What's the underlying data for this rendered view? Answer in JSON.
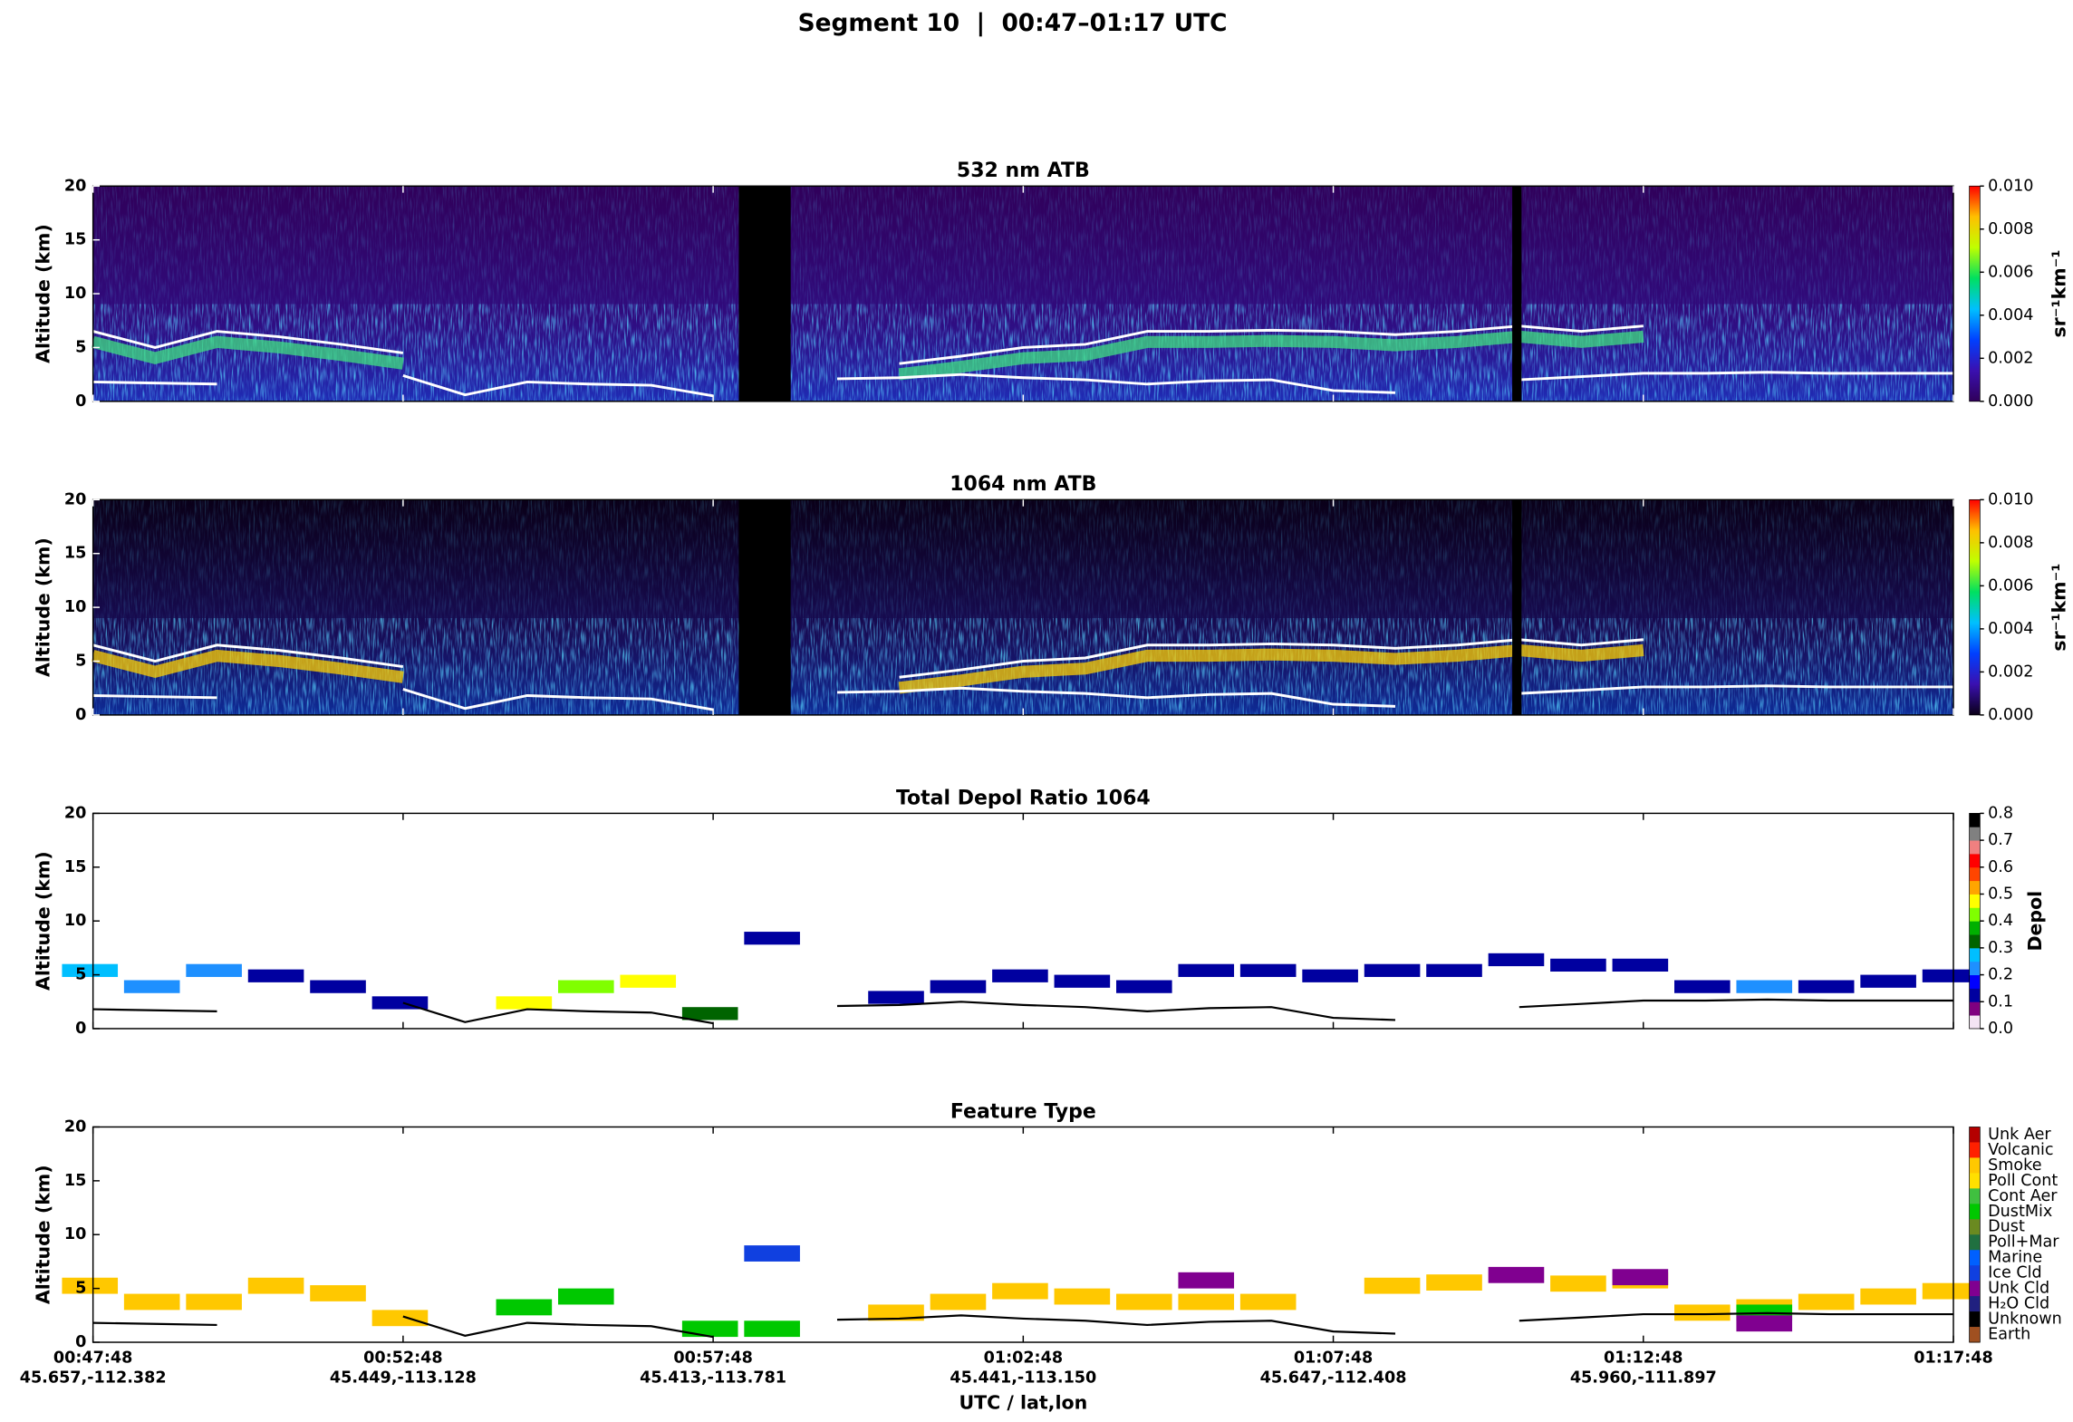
{
  "title": "Segment 10  |  00:47–01:17 UTC",
  "chart_data": [
    {
      "type": "heatmap",
      "title": "532 nm ATB",
      "y_label": "Altitude (km)",
      "ylim": [
        0,
        20
      ],
      "yticks": [
        0,
        5,
        10,
        15,
        20
      ],
      "xlim": [
        "00:47:48",
        "01:17:48"
      ],
      "x": [
        "00:47:48",
        "00:48:48",
        "00:49:48",
        "00:50:48",
        "00:51:48",
        "00:52:48",
        "00:53:48",
        "00:54:48",
        "00:55:48",
        "00:56:48",
        "00:57:48",
        "00:58:48",
        "00:59:48",
        "01:00:48",
        "01:01:48",
        "01:02:48",
        "01:03:48",
        "01:04:48",
        "01:05:48",
        "01:06:48",
        "01:07:48",
        "01:08:48",
        "01:09:48",
        "01:10:48",
        "01:11:48",
        "01:12:48",
        "01:13:48",
        "01:14:48",
        "01:15:48",
        "01:16:48",
        "01:17:48"
      ],
      "surface": [
        1.8,
        1.7,
        1.6,
        null,
        null,
        2.4,
        0.6,
        1.8,
        1.6,
        1.5,
        0.5,
        null,
        2.1,
        2.2,
        2.5,
        2.2,
        2.0,
        1.6,
        1.9,
        2.0,
        1.0,
        0.8,
        null,
        2.0,
        2.3,
        2.6,
        2.6,
        2.7,
        2.6,
        2.6,
        2.6
      ],
      "layer_top": [
        6.5,
        5.0,
        6.5,
        6.0,
        5.3,
        4.5,
        null,
        null,
        null,
        null,
        null,
        null,
        null,
        3.5,
        4.2,
        5.0,
        5.3,
        6.5,
        6.5,
        6.6,
        6.5,
        6.2,
        6.5,
        7.0,
        6.5,
        7.0,
        null,
        null,
        null,
        null,
        null
      ],
      "layer_color": "#40e080",
      "line_color": "#ffffff",
      "colorbar_label": "sr⁻¹km⁻¹",
      "colorbar_lim": [
        0,
        0.01
      ],
      "colorbar_ticks": [
        {
          "value": 0,
          "label": "0.000"
        },
        {
          "value": 0.002,
          "label": "0.002"
        },
        {
          "value": 0.004,
          "label": "0.004"
        },
        {
          "value": 0.006,
          "label": "0.006"
        },
        {
          "value": 0.008,
          "label": "0.008"
        },
        {
          "value": 0.01,
          "label": "0.010"
        }
      ],
      "colormap": [
        "#30005a",
        "#3a10b0",
        "#0040ff",
        "#00c0ff",
        "#00e060",
        "#c0ff00",
        "#ffc000",
        "#ff0000"
      ]
    },
    {
      "type": "heatmap",
      "title": "1064 nm ATB",
      "y_label": "Altitude (km)",
      "ylim": [
        0,
        20
      ],
      "yticks": [
        0,
        5,
        10,
        15,
        20
      ],
      "xlim": [
        "00:47:48",
        "01:17:48"
      ],
      "x": [
        "00:47:48",
        "00:48:48",
        "00:49:48",
        "00:50:48",
        "00:51:48",
        "00:52:48",
        "00:53:48",
        "00:54:48",
        "00:55:48",
        "00:56:48",
        "00:57:48",
        "00:58:48",
        "00:59:48",
        "01:00:48",
        "01:01:48",
        "01:02:48",
        "01:03:48",
        "01:04:48",
        "01:05:48",
        "01:06:48",
        "01:07:48",
        "01:08:48",
        "01:09:48",
        "01:10:48",
        "01:11:48",
        "01:12:48",
        "01:13:48",
        "01:14:48",
        "01:15:48",
        "01:16:48",
        "01:17:48"
      ],
      "surface": [
        1.8,
        1.7,
        1.6,
        null,
        null,
        2.4,
        0.6,
        1.8,
        1.6,
        1.5,
        0.5,
        null,
        2.1,
        2.2,
        2.5,
        2.2,
        2.0,
        1.6,
        1.9,
        2.0,
        1.0,
        0.8,
        null,
        2.0,
        2.3,
        2.6,
        2.6,
        2.7,
        2.6,
        2.6,
        2.6
      ],
      "layer_top": [
        6.5,
        5.0,
        6.5,
        6.0,
        5.3,
        4.5,
        null,
        null,
        null,
        null,
        null,
        null,
        null,
        3.5,
        4.2,
        5.0,
        5.3,
        6.5,
        6.5,
        6.6,
        6.5,
        6.2,
        6.5,
        7.0,
        6.5,
        7.0,
        null,
        null,
        null,
        null,
        null
      ],
      "layer_color": "#ffd000",
      "line_color": "#ffffff",
      "colorbar_label": "sr⁻¹km⁻¹",
      "colorbar_lim": [
        0,
        0.01
      ],
      "colorbar_ticks": [
        {
          "value": 0,
          "label": "0.000"
        },
        {
          "value": 0.002,
          "label": "0.002"
        },
        {
          "value": 0.004,
          "label": "0.004"
        },
        {
          "value": 0.006,
          "label": "0.006"
        },
        {
          "value": 0.008,
          "label": "0.008"
        },
        {
          "value": 0.01,
          "label": "0.010"
        }
      ],
      "colormap": [
        "#0a0018",
        "#3a10b0",
        "#0040ff",
        "#00c0ff",
        "#00e060",
        "#c0ff00",
        "#ffc000",
        "#ff0000"
      ]
    },
    {
      "type": "segments",
      "title": "Total Depol Ratio 1064",
      "y_label": "Altitude (km)",
      "ylim": [
        0,
        20
      ],
      "yticks": [
        0,
        5,
        10,
        15,
        20
      ],
      "xlim": [
        "00:47:48",
        "01:17:48"
      ],
      "x": [
        "00:47:48",
        "00:48:48",
        "00:49:48",
        "00:50:48",
        "00:51:48",
        "00:52:48",
        "00:53:48",
        "00:54:48",
        "00:55:48",
        "00:56:48",
        "00:57:48",
        "00:58:48",
        "00:59:48",
        "01:00:48",
        "01:01:48",
        "01:02:48",
        "01:03:48",
        "01:04:48",
        "01:05:48",
        "01:06:48",
        "01:07:48",
        "01:08:48",
        "01:09:48",
        "01:10:48",
        "01:11:48",
        "01:12:48",
        "01:13:48",
        "01:14:48",
        "01:15:48",
        "01:16:48",
        "01:17:48"
      ],
      "surface": [
        1.8,
        1.7,
        1.6,
        null,
        null,
        2.4,
        0.6,
        1.8,
        1.6,
        1.5,
        0.5,
        null,
        2.1,
        2.2,
        2.5,
        2.2,
        2.0,
        1.6,
        1.9,
        2.0,
        1.0,
        0.8,
        null,
        2.0,
        2.3,
        2.6,
        2.6,
        2.7,
        2.6,
        2.6,
        2.6
      ],
      "line_color": "#000000",
      "layer_altitude": [
        6.0,
        4.5,
        6.0,
        5.5,
        4.5,
        3.0,
        null,
        3.0,
        4.5,
        5.0,
        2.0,
        9.0,
        null,
        3.5,
        4.5,
        5.5,
        5.0,
        4.5,
        6.0,
        6.0,
        5.5,
        6.0,
        6.0,
        7.0,
        6.5,
        6.5,
        4.5,
        4.5,
        4.5,
        5.0,
        5.5
      ],
      "layer_depol": [
        0.25,
        0.2,
        0.2,
        0.1,
        0.1,
        0.15,
        null,
        0.45,
        0.4,
        0.45,
        0.35,
        0.15,
        null,
        0.1,
        0.1,
        0.1,
        0.1,
        0.1,
        0.1,
        0.1,
        0.1,
        0.1,
        0.1,
        0.1,
        0.1,
        0.1,
        0.15,
        0.2,
        0.15,
        0.15,
        0.15
      ],
      "colorbar_label": "Depol",
      "colorbar_lim": [
        0,
        0.8
      ],
      "colorbar_ticks": [
        {
          "value": 0,
          "label": "0.0"
        },
        {
          "value": 0.1,
          "label": "0.1"
        },
        {
          "value": 0.2,
          "label": "0.2"
        },
        {
          "value": 0.3,
          "label": "0.3"
        },
        {
          "value": 0.4,
          "label": "0.4"
        },
        {
          "value": 0.5,
          "label": "0.5"
        },
        {
          "value": 0.6,
          "label": "0.6"
        },
        {
          "value": 0.7,
          "label": "0.7"
        },
        {
          "value": 0.8,
          "label": "0.8"
        }
      ],
      "colormap": [
        "#f4e4f4",
        "#800080",
        "#0000a0",
        "#0000ff",
        "#1e90ff",
        "#00bfff",
        "#006400",
        "#00b000",
        "#80ff00",
        "#ffff00",
        "#ffa500",
        "#ff4500",
        "#ff0000",
        "#f08080",
        "#808080",
        "#000000"
      ]
    },
    {
      "type": "category",
      "title": "Feature Type",
      "y_label": "Altitude (km)",
      "ylim": [
        0,
        20
      ],
      "yticks": [
        0,
        5,
        10,
        15,
        20
      ],
      "xlim": [
        "00:47:48",
        "01:17:48"
      ],
      "x": [
        "00:47:48",
        "00:48:48",
        "00:49:48",
        "00:50:48",
        "00:51:48",
        "00:52:48",
        "00:53:48",
        "00:54:48",
        "00:55:48",
        "00:56:48",
        "00:57:48",
        "00:58:48",
        "00:59:48",
        "01:00:48",
        "01:01:48",
        "01:02:48",
        "01:03:48",
        "01:04:48",
        "01:05:48",
        "01:06:48",
        "01:07:48",
        "01:08:48",
        "01:09:48",
        "01:10:48",
        "01:11:48",
        "01:12:48",
        "01:13:48",
        "01:14:48",
        "01:15:48",
        "01:16:48",
        "01:17:48"
      ],
      "surface": [
        1.8,
        1.7,
        1.6,
        null,
        null,
        2.4,
        0.6,
        1.8,
        1.6,
        1.5,
        0.5,
        null,
        2.1,
        2.2,
        2.5,
        2.2,
        2.0,
        1.6,
        1.9,
        2.0,
        1.0,
        0.8,
        null,
        2.0,
        2.3,
        2.6,
        2.6,
        2.7,
        2.6,
        2.6,
        2.6
      ],
      "line_color": "#000000",
      "series": [
        {
          "name": "Unk Aer",
          "color": "#b40000",
          "values": [
            null,
            null,
            null,
            null,
            null,
            null,
            null,
            null,
            null,
            null,
            null,
            null,
            null,
            null,
            null,
            null,
            null,
            null,
            null,
            null,
            null,
            null,
            null,
            null,
            null,
            null,
            null,
            null,
            null,
            null,
            null
          ]
        },
        {
          "name": "Volcanic",
          "color": "#ff2000",
          "values": [
            null,
            null,
            null,
            null,
            null,
            null,
            null,
            null,
            null,
            null,
            null,
            null,
            null,
            null,
            null,
            null,
            null,
            null,
            null,
            null,
            null,
            null,
            null,
            null,
            null,
            null,
            null,
            null,
            null,
            null,
            null
          ]
        },
        {
          "name": "Smoke",
          "color": "#ffc800",
          "values": [
            6.0,
            4.5,
            4.5,
            6.0,
            5.3,
            3.0,
            null,
            null,
            null,
            null,
            null,
            null,
            null,
            3.5,
            4.5,
            5.5,
            5.0,
            4.5,
            4.5,
            4.5,
            null,
            6.0,
            6.3,
            null,
            6.2,
            6.5,
            3.5,
            4.0,
            4.5,
            5.0,
            5.5
          ]
        },
        {
          "name": "Poll Cont",
          "color": "#ffe000",
          "values": [
            null,
            null,
            null,
            null,
            null,
            null,
            null,
            null,
            null,
            null,
            null,
            null,
            null,
            null,
            null,
            null,
            null,
            null,
            null,
            null,
            null,
            null,
            null,
            null,
            null,
            null,
            null,
            null,
            null,
            null,
            null
          ]
        },
        {
          "name": "Cont Aer",
          "color": "#40c040",
          "values": [
            null,
            null,
            null,
            null,
            null,
            null,
            null,
            null,
            null,
            null,
            null,
            null,
            null,
            null,
            null,
            null,
            null,
            null,
            null,
            null,
            null,
            null,
            null,
            null,
            null,
            null,
            null,
            null,
            null,
            null,
            null
          ]
        },
        {
          "name": "DustMix",
          "color": "#00c800",
          "values": [
            null,
            null,
            null,
            null,
            null,
            null,
            null,
            4.0,
            5.0,
            null,
            2.0,
            2.0,
            null,
            null,
            null,
            null,
            null,
            null,
            null,
            null,
            null,
            null,
            null,
            null,
            null,
            null,
            null,
            3.5,
            null,
            null,
            null
          ]
        },
        {
          "name": "Dust",
          "color": "#6a8a20",
          "values": [
            null,
            null,
            null,
            null,
            null,
            null,
            null,
            null,
            null,
            null,
            null,
            null,
            null,
            null,
            null,
            null,
            null,
            null,
            null,
            null,
            null,
            null,
            null,
            null,
            null,
            null,
            null,
            null,
            null,
            null,
            null
          ]
        },
        {
          "name": "Poll+Mar",
          "color": "#207040",
          "values": [
            null,
            null,
            null,
            null,
            null,
            null,
            null,
            null,
            null,
            null,
            null,
            null,
            null,
            null,
            null,
            null,
            null,
            null,
            null,
            null,
            null,
            null,
            null,
            null,
            null,
            null,
            null,
            null,
            null,
            null,
            null
          ]
        },
        {
          "name": "Marine",
          "color": "#0060ff",
          "values": [
            null,
            null,
            null,
            null,
            null,
            null,
            null,
            null,
            null,
            null,
            null,
            null,
            null,
            null,
            null,
            null,
            null,
            null,
            null,
            null,
            null,
            null,
            null,
            null,
            null,
            null,
            null,
            null,
            null,
            null,
            null
          ]
        },
        {
          "name": "Ice Cld",
          "color": "#1040e0",
          "values": [
            null,
            null,
            null,
            null,
            null,
            null,
            null,
            null,
            null,
            null,
            null,
            9.0,
            null,
            null,
            null,
            null,
            null,
            null,
            null,
            null,
            null,
            null,
            null,
            null,
            null,
            null,
            null,
            null,
            null,
            null,
            null
          ]
        },
        {
          "name": "Unk Cld",
          "color": "#800090",
          "values": [
            null,
            null,
            null,
            null,
            null,
            null,
            null,
            null,
            null,
            null,
            null,
            null,
            null,
            null,
            null,
            null,
            null,
            null,
            6.5,
            null,
            null,
            null,
            null,
            7.0,
            null,
            6.8,
            null,
            2.5,
            null,
            null,
            null
          ]
        },
        {
          "name": "H₂O Cld",
          "color": "#202080",
          "values": [
            null,
            null,
            null,
            null,
            null,
            null,
            null,
            null,
            null,
            null,
            null,
            null,
            null,
            null,
            null,
            null,
            null,
            null,
            null,
            null,
            null,
            null,
            null,
            null,
            null,
            null,
            null,
            null,
            null,
            null,
            null
          ]
        },
        {
          "name": "Unknown",
          "color": "#000000",
          "values": [
            null,
            null,
            null,
            null,
            null,
            null,
            null,
            null,
            null,
            null,
            null,
            null,
            null,
            null,
            null,
            null,
            null,
            null,
            null,
            null,
            null,
            null,
            null,
            null,
            null,
            null,
            null,
            null,
            null,
            null,
            null
          ]
        },
        {
          "name": "Earth",
          "color": "#a05020",
          "values": [
            null,
            null,
            null,
            null,
            null,
            null,
            null,
            null,
            null,
            null,
            null,
            null,
            null,
            null,
            null,
            null,
            null,
            null,
            null,
            null,
            null,
            null,
            null,
            null,
            null,
            null,
            null,
            null,
            null,
            null,
            null
          ]
        }
      ],
      "xticks": [
        "00:47:48",
        "00:52:48",
        "00:57:48",
        "01:02:48",
        "01:07:48",
        "01:12:48",
        "01:17:48"
      ],
      "xtick_sublabels": [
        "45.657,-112.382",
        "45.449,-113.128",
        "45.413,-113.781",
        "45.441,-113.150",
        "45.647,-112.408",
        "45.960,-111.897",
        null
      ],
      "x_label": "UTC / lat,lon"
    }
  ]
}
